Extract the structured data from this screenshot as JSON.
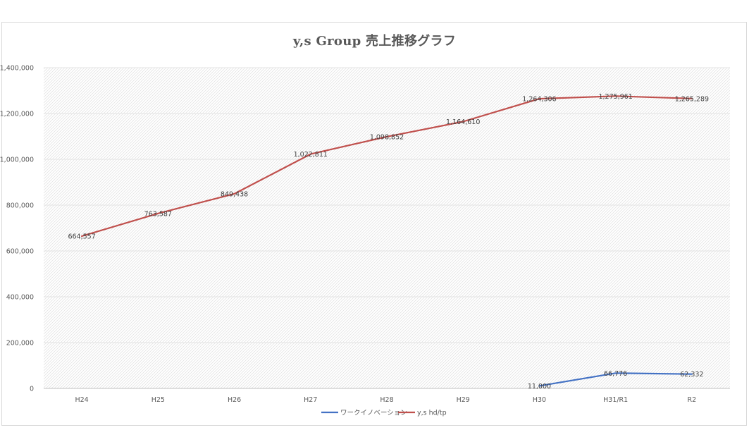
{
  "chart_data": {
    "type": "line",
    "title": "y,s Group 売上推移グラフ",
    "categories": [
      "H24",
      "H25",
      "H26",
      "H27",
      "H28",
      "H29",
      "H30",
      "H31/R1",
      "R2"
    ],
    "yticks": [
      "0",
      "200,000",
      "400,000",
      "600,000",
      "800,000",
      "1,000,000",
      "1,200,000",
      "1,400,000"
    ],
    "ylim": [
      0,
      1400000
    ],
    "grid": true,
    "legend_position": "bottom",
    "series": [
      {
        "name": "ワークイノベーション",
        "color": "#4472c4",
        "values": [
          null,
          null,
          null,
          null,
          null,
          null,
          11000,
          66776,
          62332
        ],
        "labels": [
          "",
          "",
          "",
          "",
          "",
          "",
          "11,000",
          "66,776",
          "62,332"
        ]
      },
      {
        "name": "y,s hd/tp",
        "color": "#c0504d",
        "values": [
          664557,
          763587,
          849438,
          1022811,
          1098852,
          1164610,
          1264306,
          1275961,
          1265289
        ],
        "labels": [
          "664,557",
          "763,587",
          "849,438",
          "1,022,811",
          "1,098,852",
          "1,164,610",
          "1,264,306",
          "1,275,961",
          "1,265,289"
        ]
      }
    ]
  }
}
